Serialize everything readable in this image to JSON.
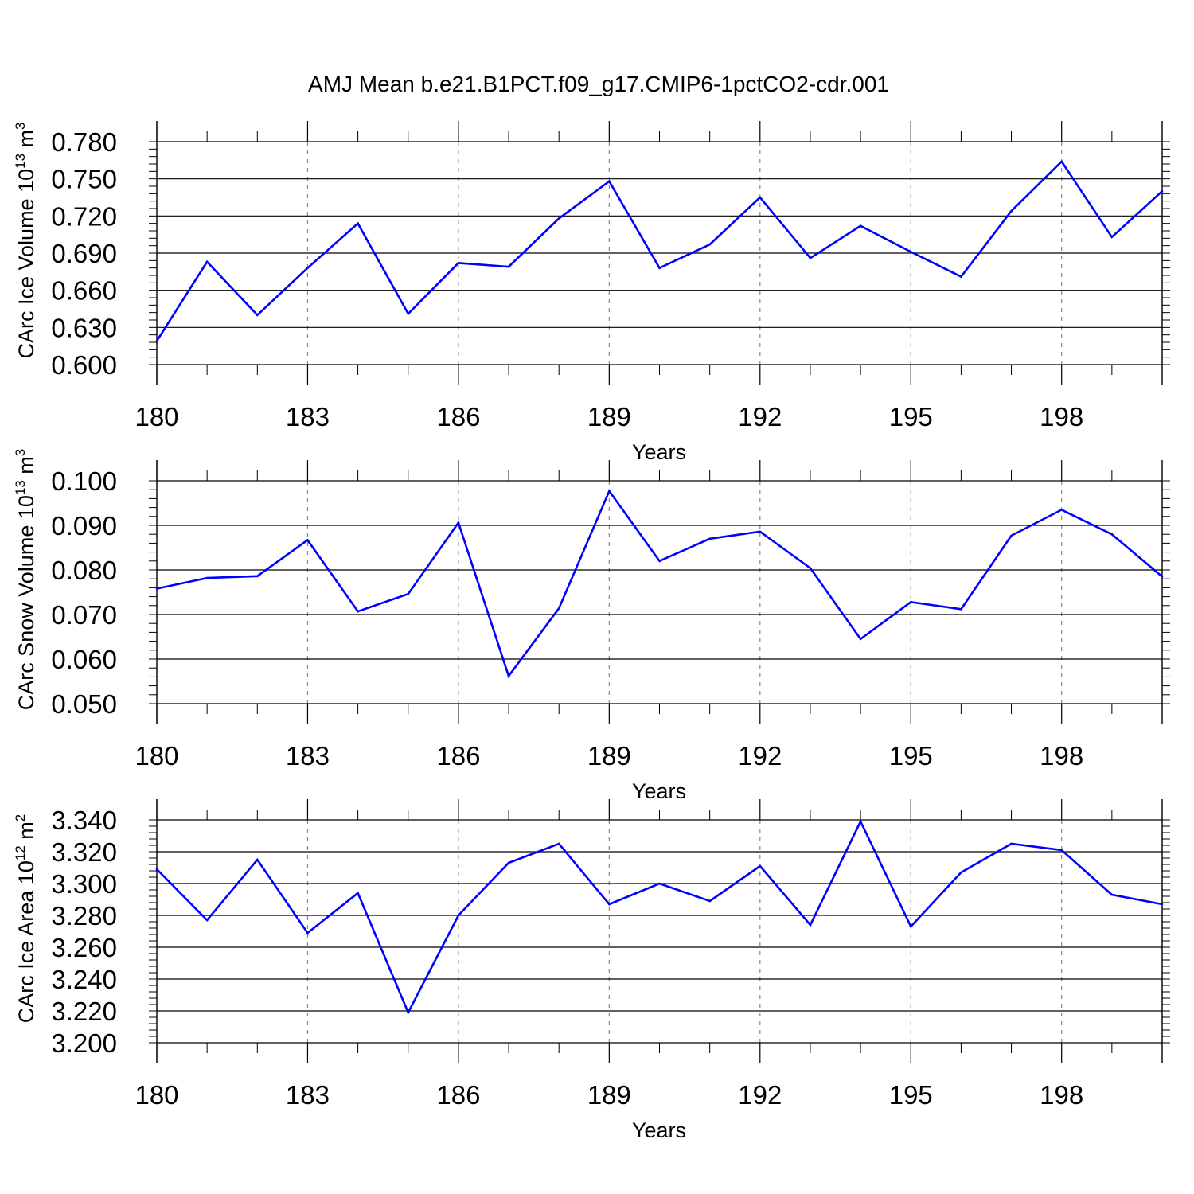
{
  "title": "AMJ Mean b.e21.B1PCT.f09_g17.CMIP6-1pctCO2-cdr.001",
  "line_color": "#0000ff",
  "chart_data": [
    {
      "type": "line",
      "ylabel_main": "CArc Ice Volume 10",
      "ylabel_exp": "13",
      "ylabel_unit": " m",
      "ylabel_unit_exp": "3",
      "xlabel": "Years",
      "xlim": [
        180,
        200
      ],
      "ylim": [
        0.6,
        0.78
      ],
      "yticks": [
        0.6,
        0.63,
        0.66,
        0.69,
        0.72,
        0.75,
        0.78
      ],
      "ytick_labels": [
        "0.600",
        "0.630",
        "0.660",
        "0.690",
        "0.720",
        "0.750",
        "0.780"
      ],
      "xticks": [
        180,
        183,
        186,
        189,
        192,
        195,
        198
      ],
      "xtick_labels": [
        "180",
        "183",
        "186",
        "189",
        "192",
        "195",
        "198"
      ],
      "x": [
        180,
        181,
        182,
        183,
        184,
        185,
        186,
        187,
        188,
        189,
        190,
        191,
        192,
        193,
        194,
        195,
        196,
        197,
        198,
        199,
        200
      ],
      "values": [
        0.619,
        0.683,
        0.64,
        0.678,
        0.714,
        0.641,
        0.682,
        0.679,
        0.718,
        0.748,
        0.678,
        0.697,
        0.735,
        0.686,
        0.712,
        0.691,
        0.671,
        0.724,
        0.764,
        0.703,
        0.74
      ]
    },
    {
      "type": "line",
      "ylabel_main": "CArc Snow Volume 10",
      "ylabel_exp": "13",
      "ylabel_unit": " m",
      "ylabel_unit_exp": "3",
      "xlabel": "Years",
      "xlim": [
        180,
        200
      ],
      "ylim": [
        0.05,
        0.1
      ],
      "yticks": [
        0.05,
        0.06,
        0.07,
        0.08,
        0.09,
        0.1
      ],
      "ytick_labels": [
        "0.050",
        "0.060",
        "0.070",
        "0.080",
        "0.090",
        "0.100"
      ],
      "xticks": [
        180,
        183,
        186,
        189,
        192,
        195,
        198
      ],
      "xtick_labels": [
        "180",
        "183",
        "186",
        "189",
        "192",
        "195",
        "198"
      ],
      "x": [
        180,
        181,
        182,
        183,
        184,
        185,
        186,
        187,
        188,
        189,
        190,
        191,
        192,
        193,
        194,
        195,
        196,
        197,
        198,
        199,
        200
      ],
      "values": [
        0.0758,
        0.0782,
        0.0786,
        0.0867,
        0.0707,
        0.0746,
        0.0906,
        0.0562,
        0.0714,
        0.0977,
        0.082,
        0.087,
        0.0886,
        0.0804,
        0.0645,
        0.0728,
        0.0712,
        0.0877,
        0.0935,
        0.088,
        0.0785
      ]
    },
    {
      "type": "line",
      "ylabel_main": "CArc Ice Area 10",
      "ylabel_exp": "12",
      "ylabel_unit": " m",
      "ylabel_unit_exp": "2",
      "xlabel": "Years",
      "xlim": [
        180,
        200
      ],
      "ylim": [
        3.2,
        3.34
      ],
      "yticks": [
        3.2,
        3.22,
        3.24,
        3.26,
        3.28,
        3.3,
        3.32,
        3.34
      ],
      "ytick_labels": [
        "3.200",
        "3.220",
        "3.240",
        "3.260",
        "3.280",
        "3.300",
        "3.320",
        "3.340"
      ],
      "xticks": [
        180,
        183,
        186,
        189,
        192,
        195,
        198
      ],
      "xtick_labels": [
        "180",
        "183",
        "186",
        "189",
        "192",
        "195",
        "198"
      ],
      "x": [
        180,
        181,
        182,
        183,
        184,
        185,
        186,
        187,
        188,
        189,
        190,
        191,
        192,
        193,
        194,
        195,
        196,
        197,
        198,
        199,
        200
      ],
      "values": [
        3.309,
        3.277,
        3.315,
        3.269,
        3.294,
        3.219,
        3.28,
        3.313,
        3.325,
        3.287,
        3.3,
        3.289,
        3.311,
        3.274,
        3.339,
        3.273,
        3.307,
        3.325,
        3.321,
        3.293,
        3.287
      ]
    }
  ]
}
